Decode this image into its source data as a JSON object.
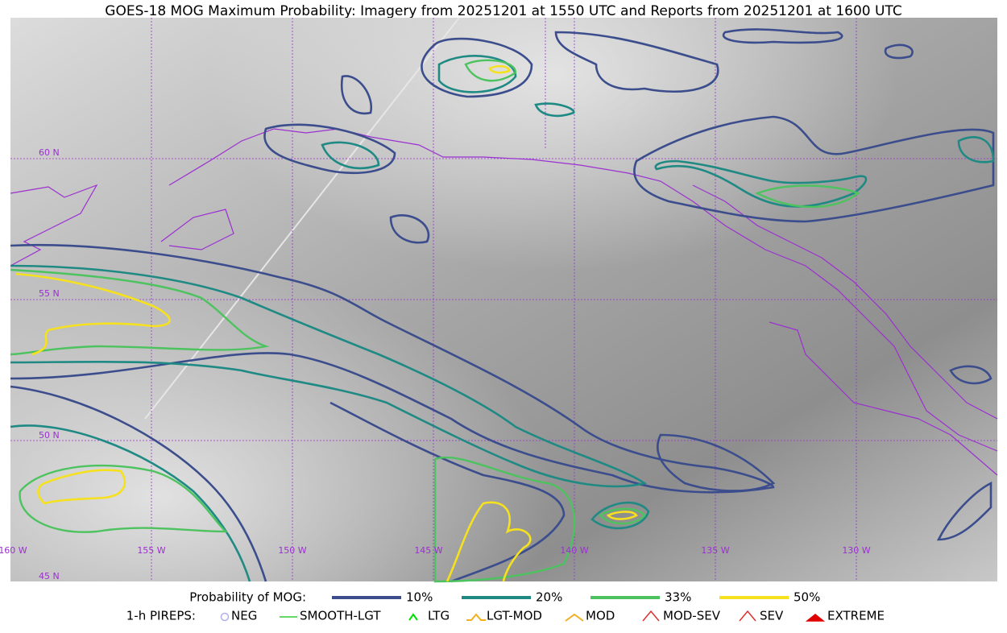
{
  "title": "GOES-18 MOG Maximum Probability: Imagery from 20251201 at 1550 UTC and Reports from 20251201 at 1600 UTC",
  "map": {
    "latitude_labels": [
      "60 N",
      "55 N",
      "50 N",
      "45 N"
    ],
    "longitude_labels": [
      "160 W",
      "155 W",
      "150 W",
      "145 W",
      "140 W",
      "135 W",
      "130 W"
    ]
  },
  "legend": {
    "probability": {
      "title": "Probability of MOG:",
      "items": [
        {
          "label": "10%",
          "color": "#3b4d8c"
        },
        {
          "label": "20%",
          "color": "#1f8a84"
        },
        {
          "label": "33%",
          "color": "#4cc35e"
        },
        {
          "label": "50%",
          "color": "#f5e11e"
        }
      ]
    },
    "pireps": {
      "title": "1-h PIREPS:",
      "items": [
        {
          "label": "NEG",
          "color": "#b0b0f0"
        },
        {
          "label": "SMOOTH-LGT",
          "color": "#33cc33"
        },
        {
          "label": "LTG",
          "color": "#00dd00"
        },
        {
          "label": "LGT-MOD",
          "color": "#f0b020"
        },
        {
          "label": "MOD",
          "color": "#f0b020"
        },
        {
          "label": "MOD-SEV",
          "color": "#e03030"
        },
        {
          "label": "SEV",
          "color": "#e03030"
        },
        {
          "label": "EXTREME",
          "color": "#e00000"
        }
      ]
    }
  }
}
